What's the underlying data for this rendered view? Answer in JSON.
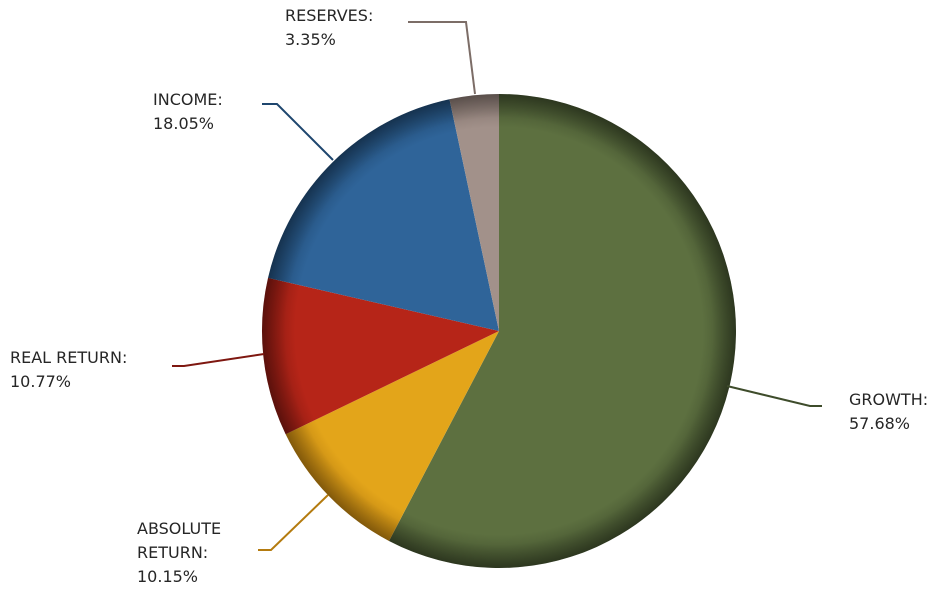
{
  "chart_data": {
    "type": "pie",
    "start_angle_deg": 0,
    "direction": "clockwise",
    "slices": [
      {
        "name": "GROWTH",
        "label_name": "GROWTH:",
        "value": 57.68,
        "label_value": "57.68%",
        "color": "#5d7040",
        "shade": "#3e4c2b"
      },
      {
        "name": "ABSOLUTE RETURN",
        "label_name_lines": [
          "ABSOLUTE",
          "RETURN:"
        ],
        "value": 10.15,
        "label_value": "10.15%",
        "color": "#e3a51a",
        "shade": "#b47b0f"
      },
      {
        "name": "REAL RETURN",
        "label_name": "REAL RETURN:",
        "value": 10.77,
        "label_value": "10.77%",
        "color": "#b62518",
        "shade": "#7e1710"
      },
      {
        "name": "INCOME",
        "label_name": "INCOME:",
        "value": 18.05,
        "label_value": "18.05%",
        "color": "#2f6499",
        "shade": "#1e466e"
      },
      {
        "name": "RESERVES",
        "label_name": "RESERVES:",
        "value": 3.35,
        "label_value": "3.35%",
        "color": "#a2918a",
        "shade": "#7c6d67"
      }
    ]
  }
}
